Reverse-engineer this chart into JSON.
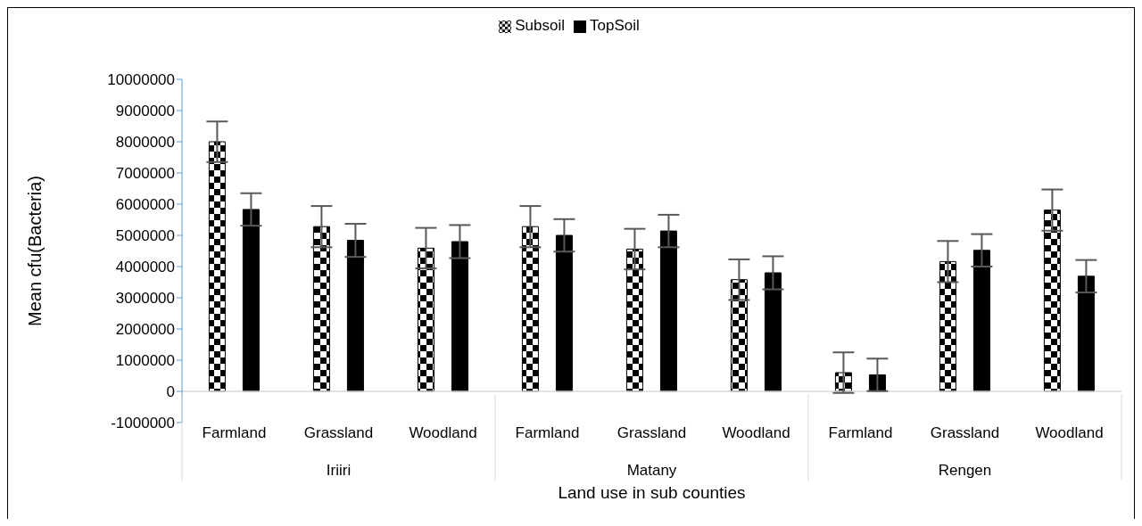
{
  "chart_data": {
    "type": "bar",
    "xlabel": "Land use in sub counties",
    "ylabel": "Mean cfu(Bacteria)",
    "categories": [
      "Farmland",
      "Grassland",
      "Woodland",
      "Farmland",
      "Grassland",
      "Woodland",
      "Farmland",
      "Grassland",
      "Woodland"
    ],
    "annotations": [
      "Iriiri",
      "Matany",
      "Rengen"
    ],
    "series": [
      {
        "name": "Subsoil",
        "color": "#000000",
        "values": [
          8000000,
          5280000,
          4590000,
          5280000,
          4560000,
          3580000,
          600000,
          4160000,
          5810000
        ],
        "errors": [
          650000,
          660000,
          650000,
          660000,
          650000,
          650000,
          650000,
          660000,
          660000
        ]
      },
      {
        "name": "TopSoil",
        "color": "#000000",
        "values": [
          5830000,
          4840000,
          4800000,
          5000000,
          5140000,
          3800000,
          530000,
          4520000,
          3690000
        ],
        "errors": [
          520000,
          530000,
          530000,
          520000,
          520000,
          530000,
          520000,
          520000,
          520000
        ]
      }
    ],
    "ylim": [
      -1000000,
      10000000
    ],
    "yticks": [
      -1000000,
      0,
      1000000,
      2000000,
      3000000,
      4000000,
      5000000,
      6000000,
      7000000,
      8000000,
      9000000,
      10000000
    ],
    "grid": false,
    "legend": "top"
  }
}
